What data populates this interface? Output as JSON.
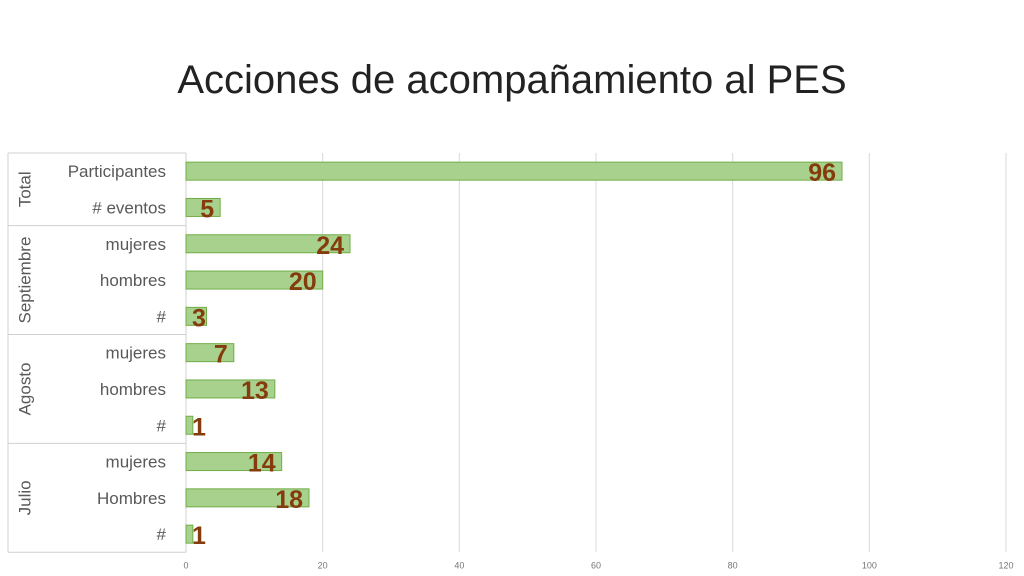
{
  "title": "Acciones de acompañamiento al PES",
  "chart_data": {
    "type": "bar",
    "orientation": "horizontal",
    "title": "Acciones de acompañamiento al PES",
    "xlim": [
      0,
      120
    ],
    "xticks": [
      "0",
      "20",
      "40",
      "60",
      "80",
      "100",
      "120"
    ],
    "grid": true,
    "groups": [
      {
        "name": "Total",
        "categories": [
          "Participantes",
          "# eventos"
        ],
        "values": [
          96,
          5
        ]
      },
      {
        "name": "Septiembre",
        "categories": [
          "mujeres",
          "hombres",
          "#"
        ],
        "values": [
          24,
          20,
          3
        ]
      },
      {
        "name": "Agosto",
        "categories": [
          "mujeres",
          "hombres",
          "#"
        ],
        "values": [
          7,
          13,
          1
        ]
      },
      {
        "name": "Julio",
        "categories": [
          "mujeres",
          "Hombres",
          "#"
        ],
        "values": [
          14,
          18,
          1
        ]
      }
    ],
    "colors": {
      "bar_fill": "#a9d18e",
      "bar_stroke": "#70ad47",
      "data_label": "#843c0c"
    }
  }
}
